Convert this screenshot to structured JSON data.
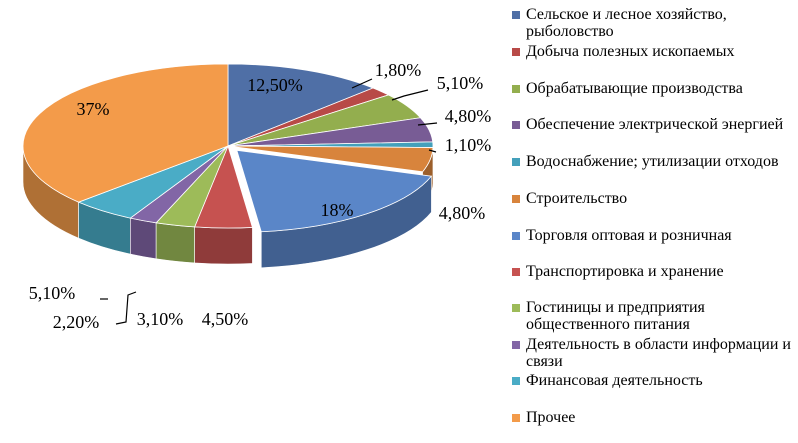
{
  "chart_data": {
    "type": "pie",
    "style": "3d-exploded",
    "legend_position": "right",
    "slices": [
      {
        "name": "Сельское и лесное хозяйство, рыболовство",
        "value": 12.5,
        "label": "12,50%",
        "color": "#4f6fa6"
      },
      {
        "name": "Добыча полезных ископаемых",
        "value": 1.8,
        "label": "1,80%",
        "color": "#b84a47"
      },
      {
        "name": "Обрабатывающие производства",
        "value": 5.1,
        "label": "5,10%",
        "color": "#93ae4e"
      },
      {
        "name": "Обеспечение электрической энергией",
        "value": 4.8,
        "label": "4,80%",
        "color": "#785c95"
      },
      {
        "name": "Водоснабжение; утилизации отходов",
        "value": 1.1,
        "label": "1,10%",
        "color": "#44a0bb"
      },
      {
        "name": "Строительство",
        "value": 4.8,
        "label": "4,80%",
        "color": "#d8843c"
      },
      {
        "name": "Торговля оптовая и розничная",
        "value": 18,
        "label": "18%",
        "color": "#5a86c8"
      },
      {
        "name": "Транспортировка и хранение",
        "value": 4.5,
        "label": "4,50%",
        "color": "#c65250"
      },
      {
        "name": "Гостиницы и предприятия общественного питания",
        "value": 3.1,
        "label": "3,10%",
        "color": "#9dbb59"
      },
      {
        "name": "Деятельность в области информации и связи",
        "value": 2.2,
        "label": "2,20%",
        "color": "#8266a6"
      },
      {
        "name": "Финансовая  деятельность",
        "value": 5.1,
        "label": "5,10%",
        "color": "#4aacc6"
      },
      {
        "name": "Прочее",
        "value": 37,
        "label": "37%",
        "color": "#f39b4a"
      }
    ]
  }
}
